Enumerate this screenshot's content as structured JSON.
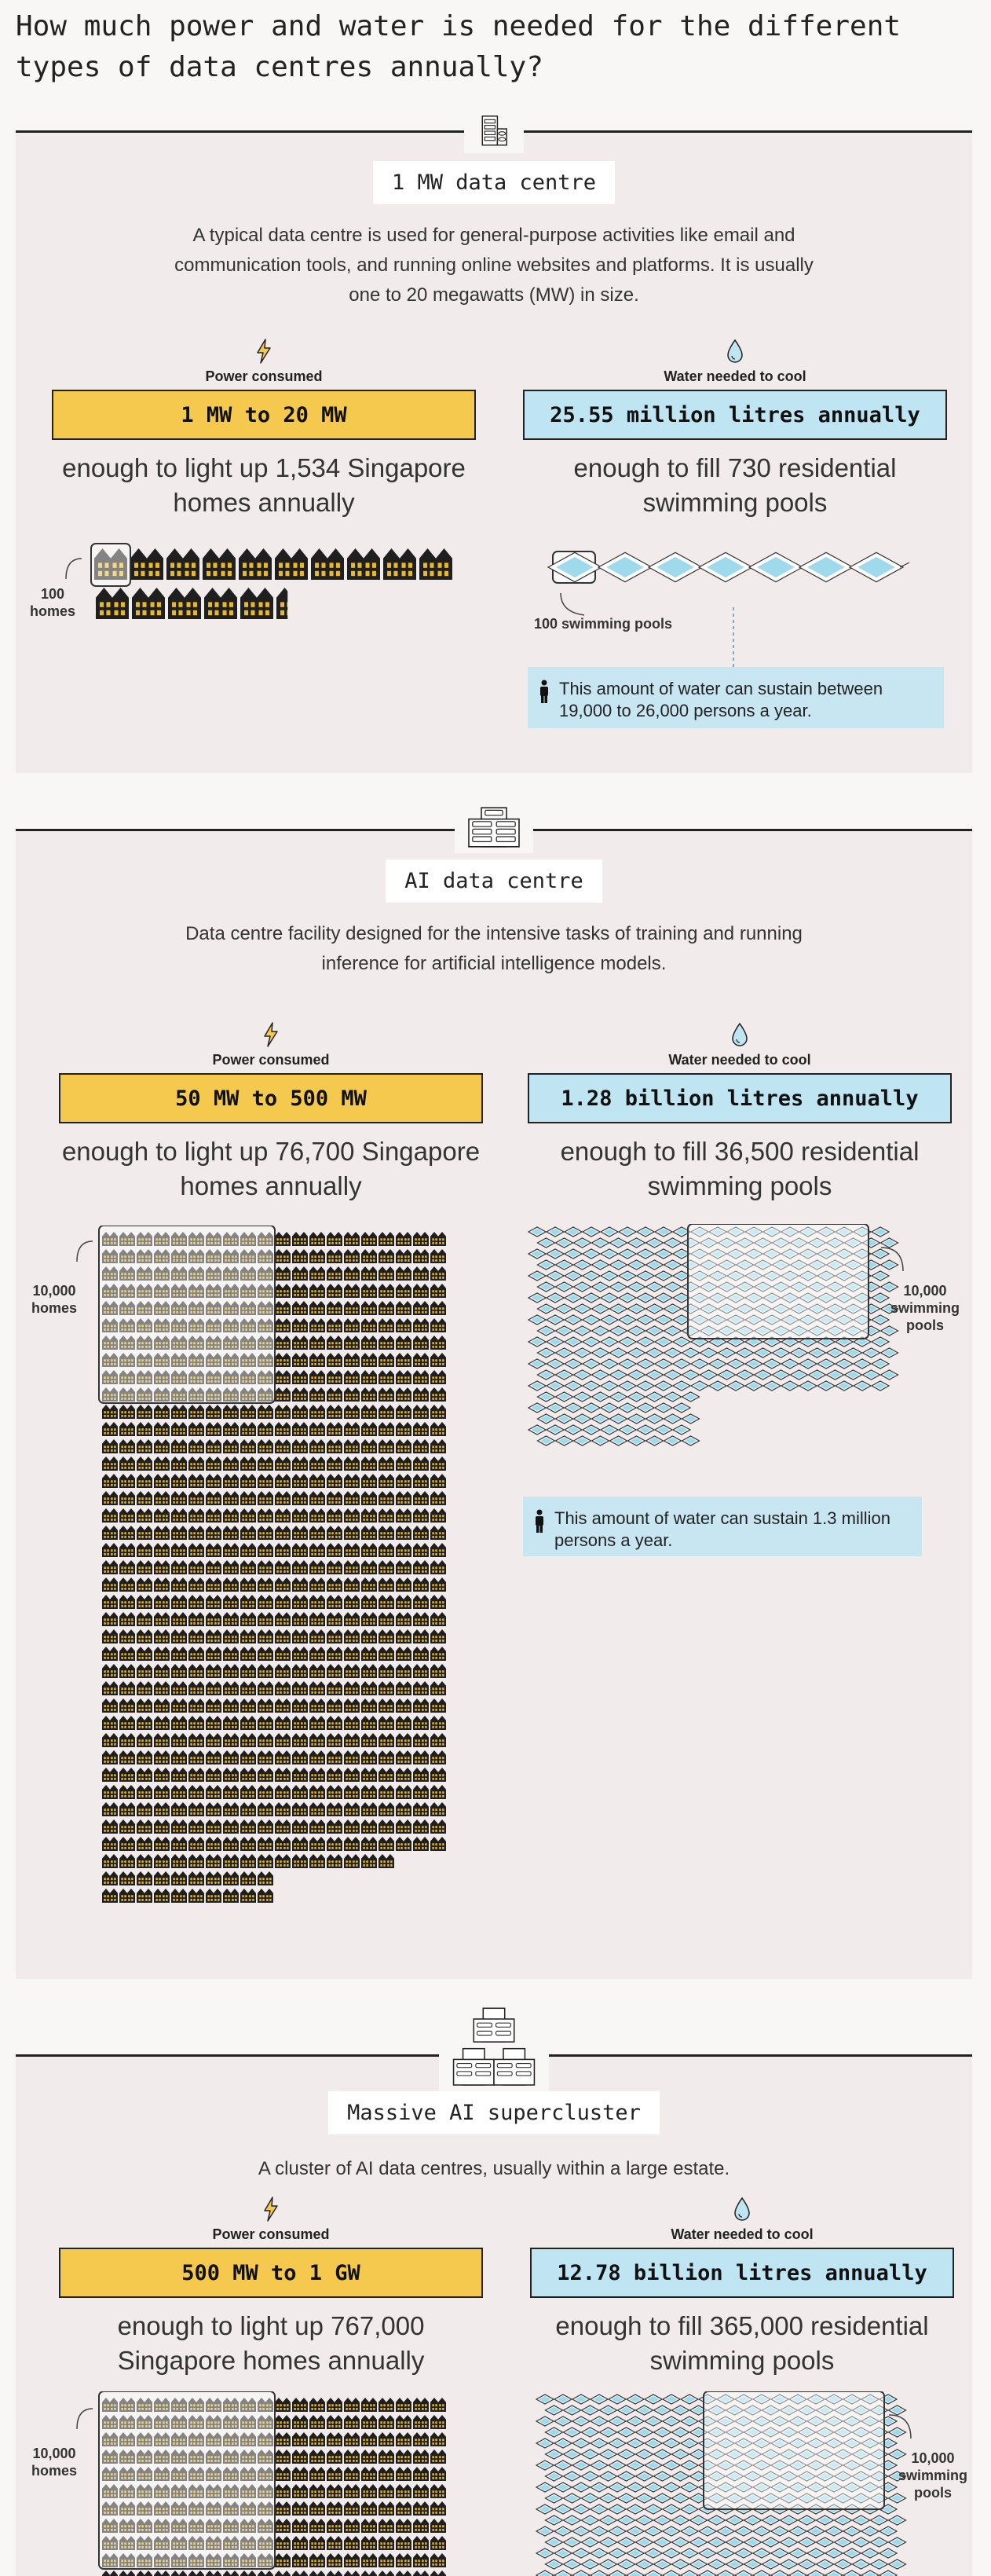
{
  "title": "How much power and water is needed for the different types of data centres annually?",
  "labels": {
    "power": "Power consumed",
    "water": "Water needed to cool"
  },
  "sections": [
    {
      "icon": "server-building-icon",
      "title": "1 MW data centre",
      "description": "A typical data centre is used for general-purpose activities like email and communication tools, and running online websites and platforms. It is usually one to 20 megawatts (MW) in size.",
      "power_value": "1 MW to 20 MW",
      "power_equiv": "enough to light up 1,534 Singapore homes annually",
      "water_value": "25.55 million litres annually",
      "water_equiv": "enough to fill 730 residential swimming pools",
      "homes_annotation": "100 homes",
      "pools_annotation": "100 swimming pools",
      "homes_count": 1534,
      "pools_count": 730,
      "note": "This amount of water can sustain between 19,000 to 26,000 persons a year."
    },
    {
      "icon": "server-rack-icon",
      "title": "AI data centre",
      "description": "Data centre facility designed for the intensive tasks of training and running inference for artificial intelligence models.",
      "power_value": "50 MW to 500 MW",
      "power_equiv": "enough to light up 76,700 Singapore homes annually",
      "water_value": "1.28 billion litres annually",
      "water_equiv": "enough to fill 36,500 residential swimming pools",
      "homes_annotation": "10,000 homes",
      "pools_annotation": "10,000 swimming pools",
      "homes_count": 76700,
      "pools_count": 36500,
      "note": "This amount of water can sustain 1.3 million persons a year."
    },
    {
      "icon": "server-cluster-icon",
      "title": "Massive AI supercluster",
      "description": "A cluster of AI data centres, usually within a large estate.",
      "power_value": "500 MW to 1 GW",
      "power_equiv": "enough to light up 767,000 Singapore homes annually",
      "water_value": "12.78 billion litres annually",
      "water_equiv": "enough to fill 365,000 residential swimming pools",
      "homes_annotation": "10,000 homes",
      "pools_annotation": "10,000 swimming pools",
      "homes_count": 767000,
      "pools_count": 365000
    }
  ],
  "colors": {
    "power": "#f4c94d",
    "water": "#bfe5f2",
    "house": "#1f1f1f",
    "window": "#e8b928",
    "pool": "#9fd9ec",
    "section_bg": "#f1ebeb"
  }
}
